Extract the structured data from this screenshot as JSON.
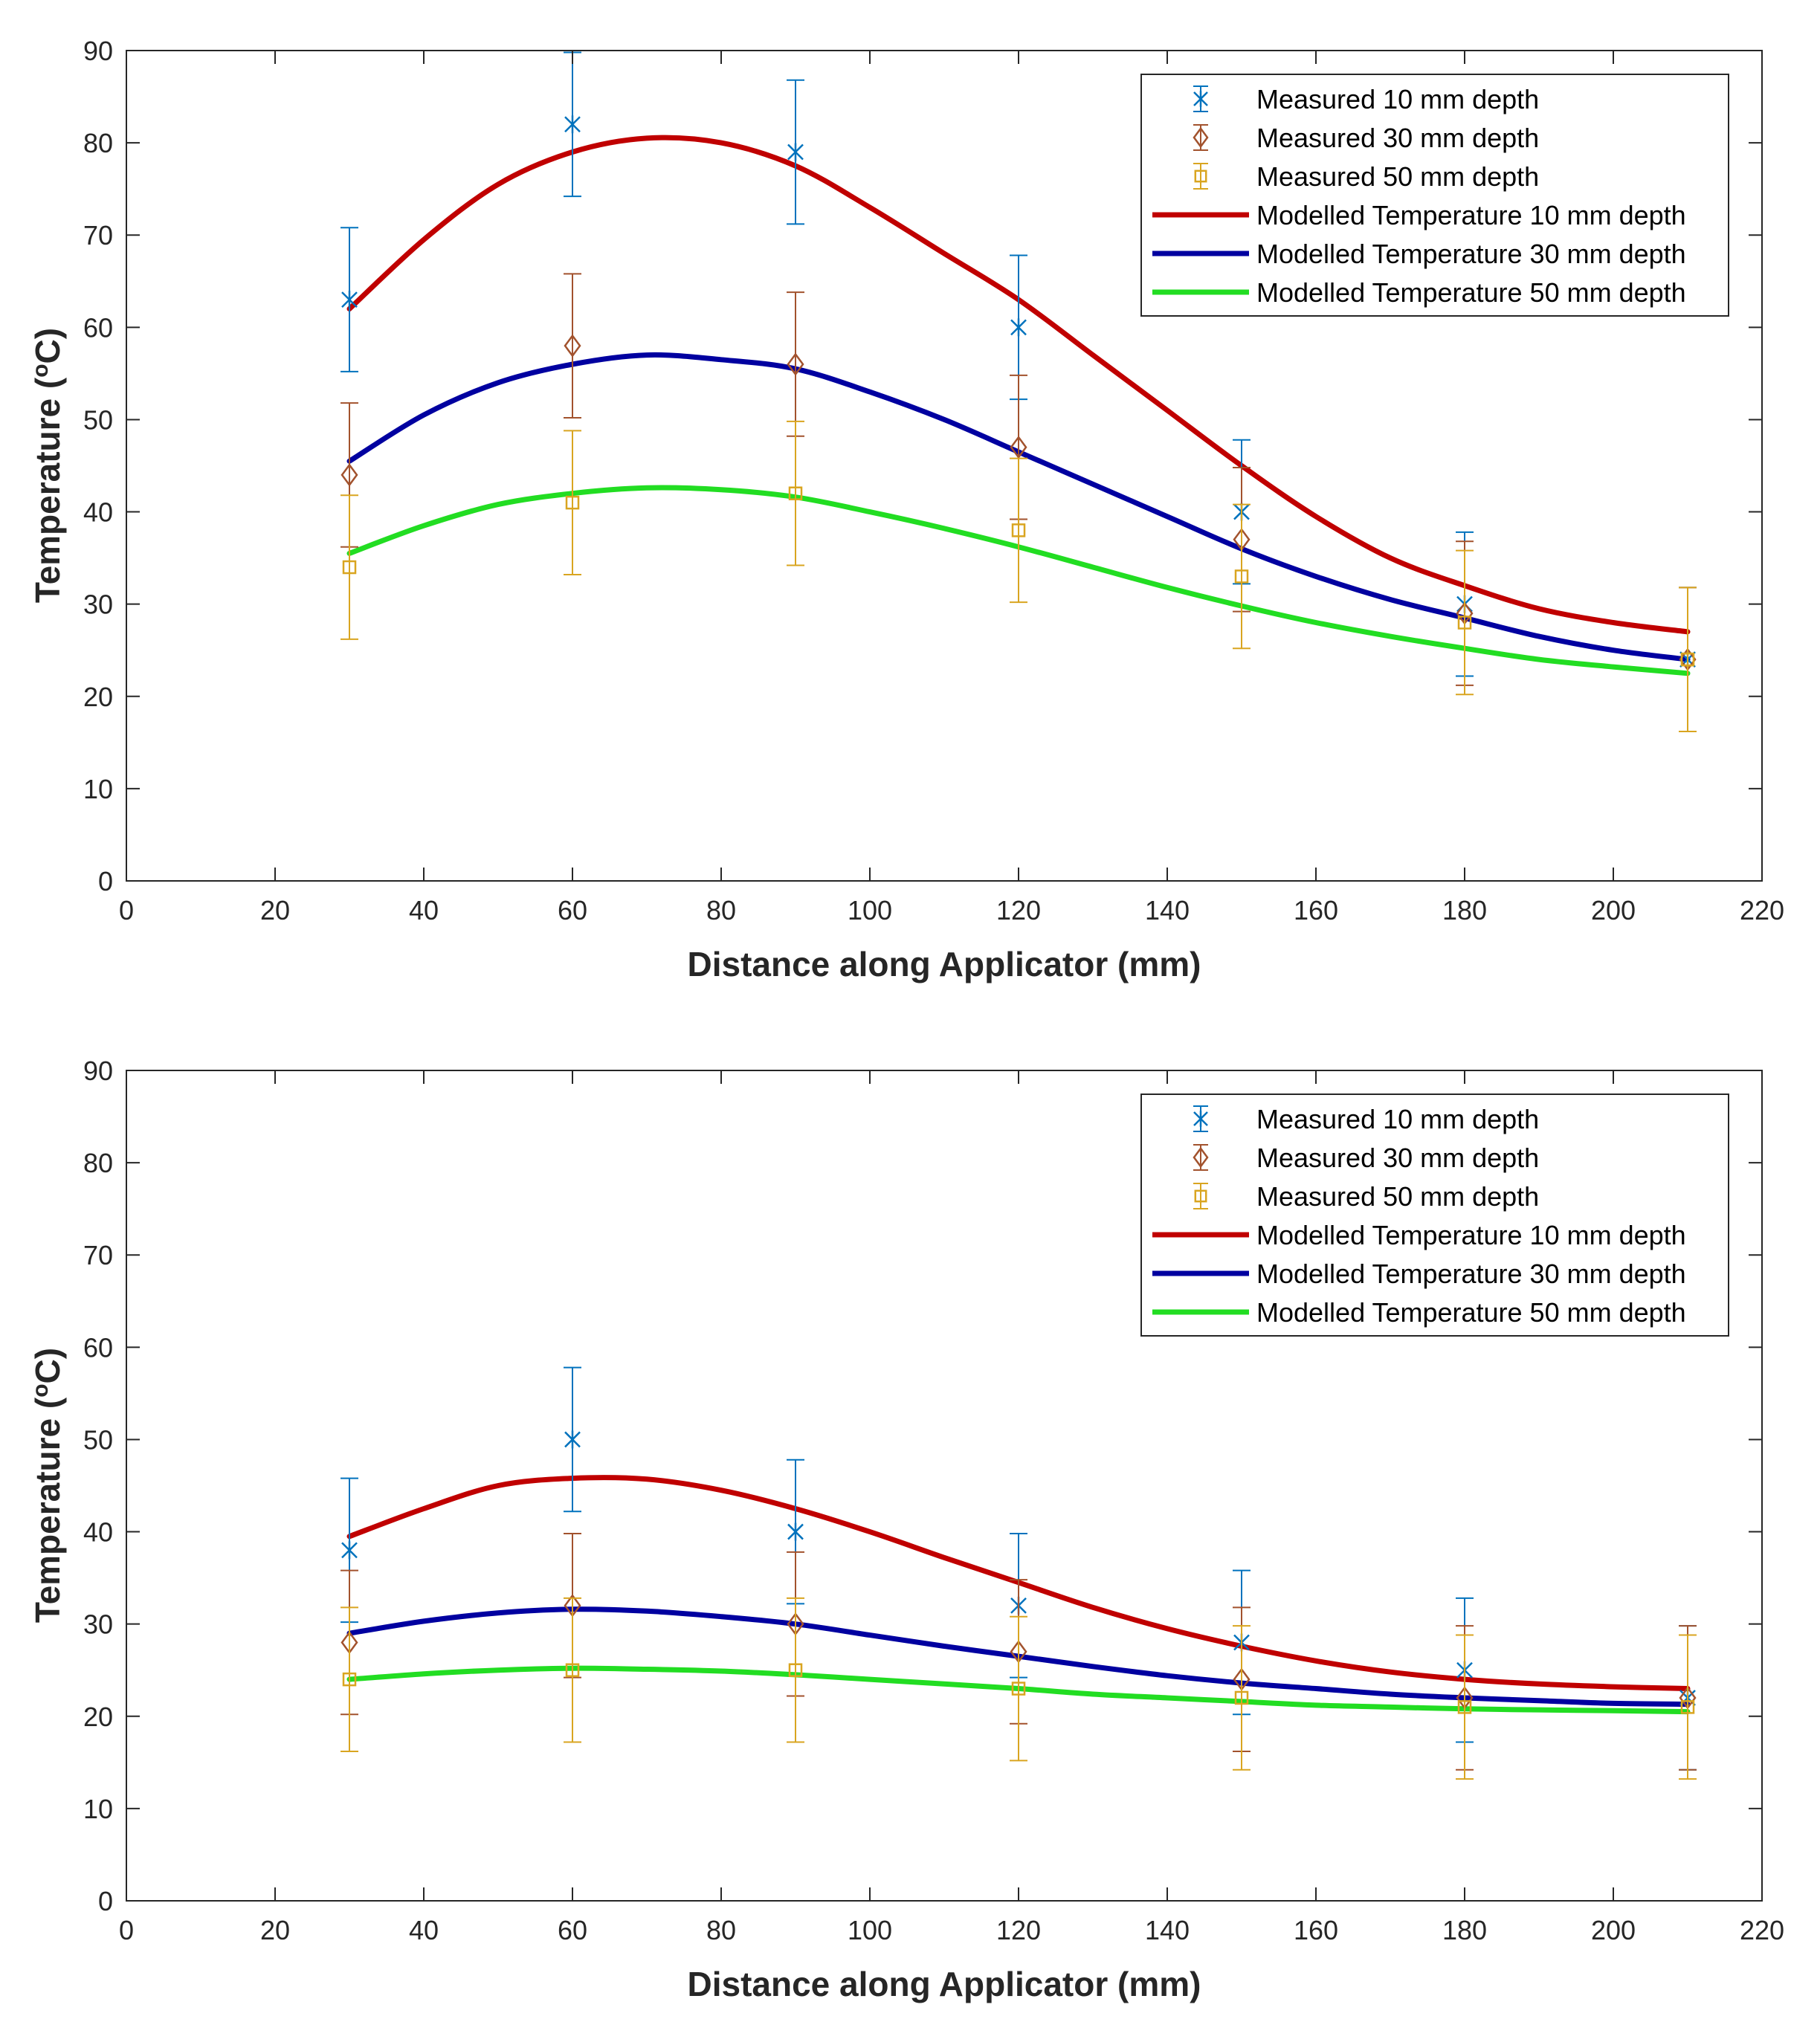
{
  "colors": {
    "measured_10": "#0072BD",
    "measured_30": "#A2522D",
    "measured_50": "#D9A520",
    "model_10": "#C00000",
    "model_30": "#0000A0",
    "model_50": "#22DD22"
  },
  "chart_data": [
    {
      "type": "line",
      "xlabel": "Distance along Applicator (mm)",
      "ylabel_main": "Temperature (",
      "ylabel_sup": "o",
      "ylabel_end": "C)",
      "xlim": [
        0,
        220
      ],
      "ylim": [
        0,
        90
      ],
      "xticks": [
        "0",
        "20",
        "40",
        "60",
        "80",
        "100",
        "120",
        "140",
        "160",
        "180",
        "200",
        "220"
      ],
      "yticks": [
        "0",
        "10",
        "20",
        "30",
        "40",
        "50",
        "60",
        "70",
        "80",
        "90"
      ],
      "legend_position": "top-right",
      "legend": [
        "Measured 10 mm depth",
        "Measured 30 mm depth",
        "Measured 50 mm depth",
        "Modelled Temperature 10 mm depth",
        "Modelled Temperature 30 mm depth",
        "Modelled Temperature 50 mm depth"
      ],
      "measured": [
        {
          "name": "Measured 10 mm depth",
          "marker": "asterisk",
          "x": [
            30,
            60,
            90,
            120,
            150,
            180,
            210
          ],
          "y": [
            63,
            82,
            79,
            60,
            40,
            30,
            24
          ],
          "err": [
            7.8,
            7.8,
            7.8,
            7.8,
            7.8,
            7.8,
            7.8
          ]
        },
        {
          "name": "Measured 30 mm depth",
          "marker": "diamond",
          "x": [
            30,
            60,
            90,
            120,
            150,
            180,
            210
          ],
          "y": [
            44,
            58,
            56,
            47,
            37,
            29,
            24
          ],
          "err": [
            7.8,
            7.8,
            7.8,
            7.8,
            7.8,
            7.8,
            7.8
          ]
        },
        {
          "name": "Measured 50 mm depth",
          "marker": "square",
          "x": [
            30,
            60,
            90,
            120,
            150,
            180,
            210
          ],
          "y": [
            34,
            41,
            42,
            38,
            33,
            28,
            24
          ],
          "err": [
            7.8,
            7.8,
            7.8,
            7.8,
            7.8,
            7.8,
            7.8
          ]
        }
      ],
      "series": [
        {
          "name": "Modelled Temperature 10 mm depth",
          "x": [
            30,
            40,
            50,
            60,
            70,
            80,
            90,
            100,
            110,
            120,
            130,
            140,
            150,
            160,
            170,
            180,
            190,
            200,
            210
          ],
          "y": [
            62,
            69.5,
            75.5,
            79,
            80.5,
            80,
            77.5,
            73,
            68,
            63,
            57,
            51,
            45,
            39.5,
            35,
            32,
            29.5,
            28,
            27
          ]
        },
        {
          "name": "Modelled Temperature 30 mm depth",
          "x": [
            30,
            40,
            50,
            60,
            70,
            80,
            90,
            100,
            110,
            120,
            130,
            140,
            150,
            160,
            170,
            180,
            190,
            200,
            210
          ],
          "y": [
            45.5,
            50.5,
            54,
            56,
            57,
            56.5,
            55.5,
            53,
            50,
            46.5,
            43,
            39.5,
            36,
            33,
            30.5,
            28.5,
            26.5,
            25,
            24
          ]
        },
        {
          "name": "Modelled Temperature 50 mm depth",
          "x": [
            30,
            40,
            50,
            60,
            70,
            80,
            90,
            100,
            110,
            120,
            130,
            140,
            150,
            160,
            170,
            180,
            190,
            200,
            210
          ],
          "y": [
            35.5,
            38.5,
            40.8,
            42,
            42.6,
            42.4,
            41.6,
            40,
            38.2,
            36.2,
            34,
            31.8,
            29.8,
            28,
            26.5,
            25.2,
            24,
            23.2,
            22.5
          ]
        }
      ]
    },
    {
      "type": "line",
      "xlabel": "Distance along Applicator (mm)",
      "ylabel_main": "Temperature (",
      "ylabel_sup": "o",
      "ylabel_end": "C)",
      "xlim": [
        0,
        220
      ],
      "ylim": [
        0,
        90
      ],
      "xticks": [
        "0",
        "20",
        "40",
        "60",
        "80",
        "100",
        "120",
        "140",
        "160",
        "180",
        "200",
        "220"
      ],
      "yticks": [
        "0",
        "10",
        "20",
        "30",
        "40",
        "50",
        "60",
        "70",
        "80",
        "90"
      ],
      "legend_position": "top-right",
      "legend": [
        "Measured 10 mm depth",
        "Measured 30 mm depth",
        "Measured 50 mm depth",
        "Modelled Temperature 10 mm depth",
        "Modelled Temperature 30 mm depth",
        "Modelled Temperature 50 mm depth"
      ],
      "measured": [
        {
          "name": "Measured 10 mm depth",
          "marker": "asterisk",
          "x": [
            30,
            60,
            90,
            120,
            150,
            180,
            210
          ],
          "y": [
            38,
            50,
            40,
            32,
            28,
            25,
            22
          ],
          "err": [
            7.8,
            7.8,
            7.8,
            7.8,
            7.8,
            7.8,
            7.8
          ]
        },
        {
          "name": "Measured 30 mm depth",
          "marker": "diamond",
          "x": [
            30,
            60,
            90,
            120,
            150,
            180,
            210
          ],
          "y": [
            28,
            32,
            30,
            27,
            24,
            22,
            22
          ],
          "err": [
            7.8,
            7.8,
            7.8,
            7.8,
            7.8,
            7.8,
            7.8
          ]
        },
        {
          "name": "Measured 50 mm depth",
          "marker": "square",
          "x": [
            30,
            60,
            90,
            120,
            150,
            180,
            210
          ],
          "y": [
            24,
            25,
            25,
            23,
            22,
            21,
            21
          ],
          "err": [
            7.8,
            7.8,
            7.8,
            7.8,
            7.8,
            7.8,
            7.8
          ]
        }
      ],
      "series": [
        {
          "name": "Modelled Temperature 10 mm depth",
          "x": [
            30,
            40,
            50,
            60,
            70,
            80,
            90,
            100,
            110,
            120,
            130,
            140,
            150,
            160,
            170,
            180,
            190,
            200,
            210
          ],
          "y": [
            39.5,
            42.5,
            45,
            45.8,
            45.7,
            44.5,
            42.5,
            40,
            37.2,
            34.5,
            31.8,
            29.5,
            27.6,
            26,
            24.8,
            24,
            23.5,
            23.2,
            23
          ]
        },
        {
          "name": "Modelled Temperature 30 mm depth",
          "x": [
            30,
            40,
            50,
            60,
            70,
            80,
            90,
            100,
            110,
            120,
            130,
            140,
            150,
            160,
            170,
            180,
            190,
            200,
            210
          ],
          "y": [
            29,
            30.3,
            31.2,
            31.6,
            31.4,
            30.8,
            30,
            28.8,
            27.6,
            26.5,
            25.4,
            24.4,
            23.6,
            23,
            22.4,
            22,
            21.7,
            21.4,
            21.3
          ]
        },
        {
          "name": "Modelled Temperature 50 mm depth",
          "x": [
            30,
            40,
            50,
            60,
            70,
            80,
            90,
            100,
            110,
            120,
            130,
            140,
            150,
            160,
            170,
            180,
            190,
            200,
            210
          ],
          "y": [
            24,
            24.6,
            25,
            25.2,
            25.1,
            24.9,
            24.5,
            24,
            23.5,
            23,
            22.4,
            22,
            21.6,
            21.2,
            21,
            20.8,
            20.7,
            20.6,
            20.5
          ]
        }
      ]
    }
  ]
}
